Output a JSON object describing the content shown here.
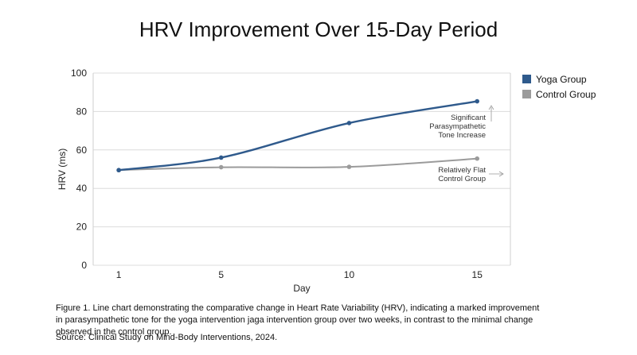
{
  "chart_data": {
    "type": "line",
    "title": "HRV Improvement Over 15-Day Period",
    "xlabel": "Day",
    "ylabel": "HRV (ms)",
    "x": [
      1,
      5,
      10,
      15
    ],
    "xticks": [
      "1",
      "5",
      "10",
      "15"
    ],
    "yticks": [
      "0",
      "20",
      "40",
      "60",
      "80",
      "100"
    ],
    "ylim": [
      0,
      100
    ],
    "xlim": [
      0,
      16.3
    ],
    "grid": true,
    "legend_position": "right",
    "series": [
      {
        "name": "Yoga Group",
        "color": "#2f5a8c",
        "values": [
          49.5,
          56,
          74,
          85.3
        ]
      },
      {
        "name": "Control Group",
        "color": "#9b9b9b",
        "values": [
          49.5,
          51,
          51.2,
          55.5
        ]
      }
    ],
    "annotations": [
      {
        "lines": [
          "Significant",
          "Parasympathetic",
          "Tone Increase"
        ],
        "arrow": "up"
      },
      {
        "lines": [
          "Relatively Flat",
          "Control Group"
        ],
        "arrow": "right"
      }
    ]
  },
  "caption": "Figure 1. Line chart demonstrating the comparative change in Heart Rate Variability (HRV), indicating a marked improvement in parasympathetic tone for the yoga intervention jaga intervention group over two weeks, in contrast to the minimal change observed in the control group.",
  "source": "Source: Clinical Study on Mind-Body Interventions, 2024."
}
